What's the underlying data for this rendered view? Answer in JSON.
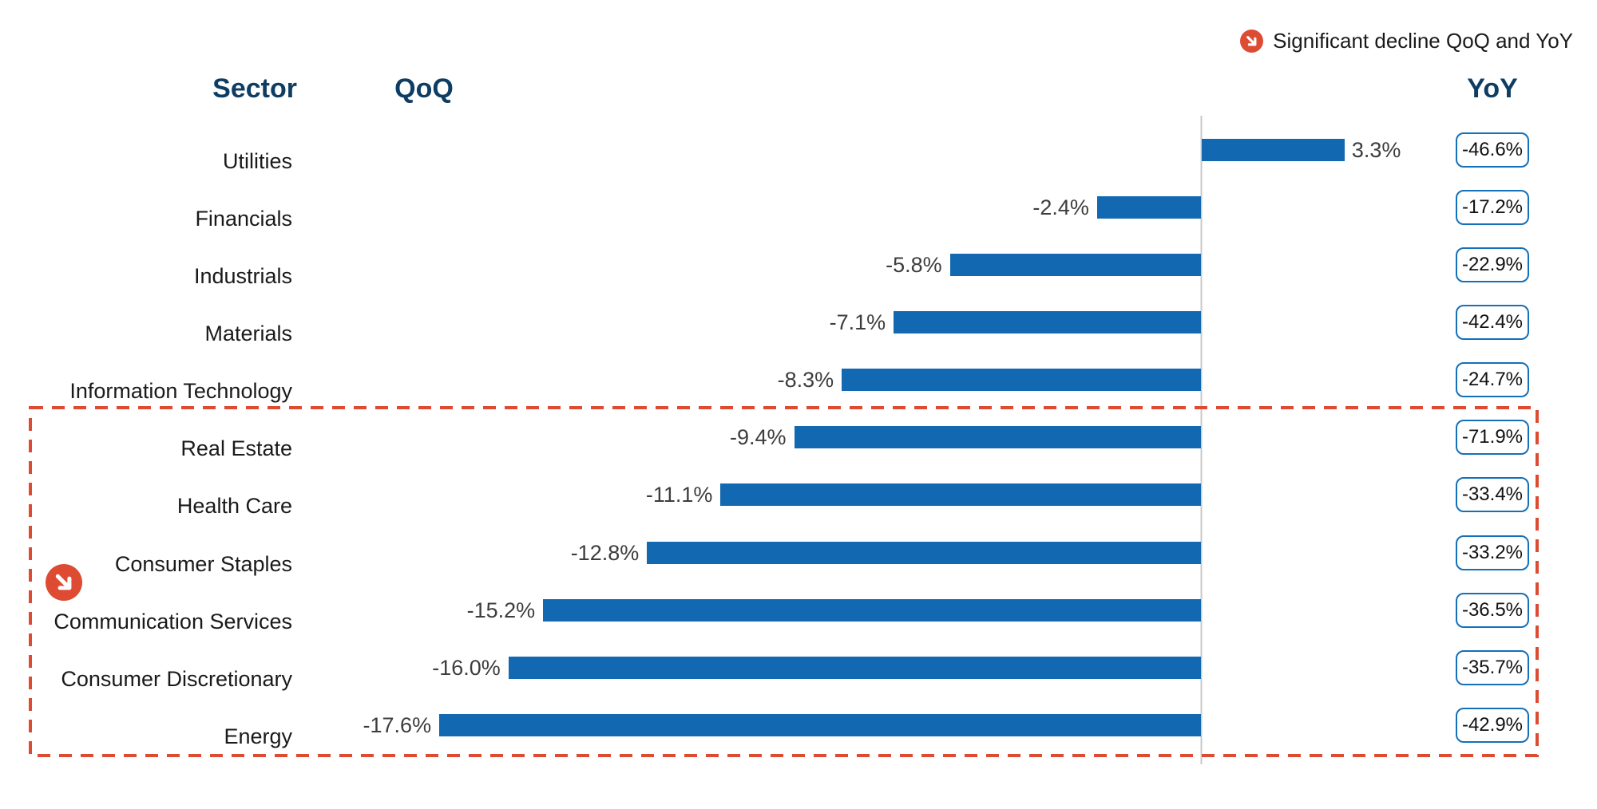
{
  "legend": {
    "icon": "decline-arrow-icon",
    "label": "Significant decline QoQ and YoY"
  },
  "headers": {
    "sector": "Sector",
    "qoq": "QoQ",
    "yoy": "YoY"
  },
  "chart_data": {
    "type": "bar",
    "orientation": "horizontal",
    "title": "",
    "categories": [
      "Utilities",
      "Financials",
      "Industrials",
      "Materials",
      "Information Technology",
      "Real Estate",
      "Health Care",
      "Consumer Staples",
      "Communication Services",
      "Consumer Discretionary",
      "Energy"
    ],
    "series": [
      {
        "name": "QoQ",
        "unit": "%",
        "values": [
          3.3,
          -2.4,
          -5.8,
          -7.1,
          -8.3,
          -9.4,
          -11.1,
          -12.8,
          -15.2,
          -16.0,
          -17.6
        ]
      },
      {
        "name": "YoY",
        "unit": "%",
        "values": [
          -46.6,
          -17.2,
          -22.9,
          -42.4,
          -24.7,
          -71.9,
          -33.4,
          -33.2,
          -36.5,
          -35.7,
          -42.9
        ]
      }
    ],
    "display": {
      "qoq": [
        "3.3%",
        "-2.4%",
        "-5.8%",
        "-7.1%",
        "-8.3%",
        "-9.4%",
        "-11.1%",
        "-12.8%",
        "-15.2%",
        "-16.0%",
        "-17.6%"
      ],
      "yoy": [
        "-46.6%",
        "-17.2%",
        "-22.9%",
        "-42.4%",
        "-24.7%",
        "-71.9%",
        "-33.4%",
        "-33.2%",
        "-36.5%",
        "-35.7%",
        "-42.9%"
      ]
    },
    "highlight": {
      "label": "Significant decline QoQ and YoY",
      "categories": [
        "Real Estate",
        "Health Care",
        "Consumer Staples",
        "Communication Services",
        "Consumer Discretionary",
        "Energy"
      ],
      "start_index": 5
    },
    "axes": {
      "zero_baseline": true,
      "value_tick_labels_visible": false,
      "gridlines": false
    },
    "legend_position": "top-right"
  },
  "colors": {
    "bar": "#1268B1",
    "box_border": "#1470B8",
    "header_text": "#0E3D64",
    "highlight_red": "#DD4B32",
    "label_text": "#1A1A1A",
    "value_text": "#3D3D3D",
    "axis_line": "#C9C9C9",
    "background": "#FFFFFF"
  }
}
